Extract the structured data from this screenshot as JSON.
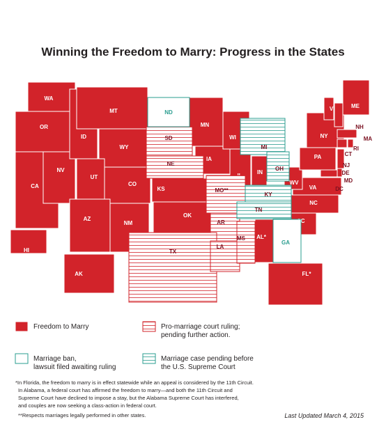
{
  "title": "Winning the Freedom to Marry: Progress in the States",
  "legend": [
    {
      "label": [
        "Freedom to Marry"
      ],
      "states": [
        "WA",
        "OR",
        "CA",
        "NV",
        "ID",
        "MT",
        "WY",
        "UT",
        "CO",
        "AZ",
        "NM",
        "KS",
        "OK",
        "MN",
        "IA",
        "WI",
        "IL",
        "IN",
        "AL*",
        "FL*",
        "SC",
        "NC",
        "VA",
        "WV",
        "PA",
        "NY",
        "VT",
        "NH",
        "ME",
        "MA",
        "CT",
        "RI",
        "NJ",
        "DE",
        "MD",
        "DC",
        "AK",
        "HI"
      ]
    },
    {
      "label": [
        "Pro-marriage court ruling;",
        "pending further action."
      ],
      "states": [
        "SD",
        "NE",
        "MO**",
        "AR",
        "TX",
        "LA",
        "MS"
      ]
    },
    {
      "label": [
        "Marriage ban,",
        "lawsuit filed awaiting ruling"
      ],
      "states": [
        "ND",
        "GA"
      ]
    },
    {
      "label": [
        "Marriage case pending before",
        "the U.S. Supreme Court"
      ],
      "states": [
        "MI",
        "OH",
        "KY",
        "TN"
      ]
    }
  ],
  "footnotes": [
    "*In Florida, the freedom to marry is in effect statewide while an appeal is considered by the 11th Circuit.",
    "In Alabama, a federal court has affirmed the freedom to marry—and both the 11th Circuit and",
    "Supreme Court have declined to impose a stay, but the Alabama Supreme Court has interfered,",
    "and couples are now seeking a class-action in federal court.",
    "**Respects marriages legally performed in other states."
  ],
  "last_updated": "Last Updated March 4, 2015"
}
